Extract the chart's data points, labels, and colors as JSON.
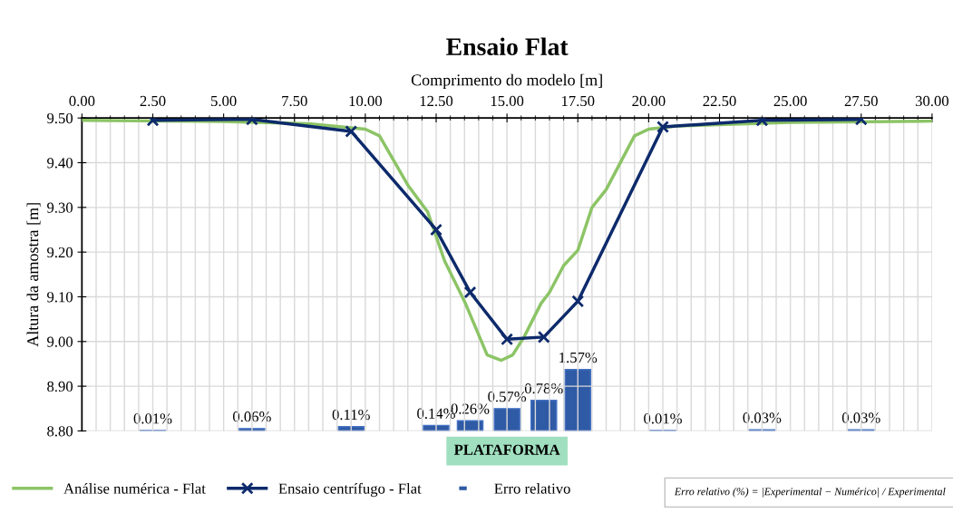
{
  "chart_data": {
    "type": "line",
    "title": "Ensaio Flat",
    "xlabel": "Comprimento do modelo [m]",
    "ylabel": "Altura da amostra [m]",
    "xlim": [
      0,
      30
    ],
    "xticks": [
      {
        "value": 0,
        "label": "0.00"
      },
      {
        "value": 2.5,
        "label": "2.50"
      },
      {
        "value": 5,
        "label": "5.00"
      },
      {
        "value": 7.5,
        "label": "7.50"
      },
      {
        "value": 10,
        "label": "10.00"
      },
      {
        "value": 12.5,
        "label": "12.50"
      },
      {
        "value": 15,
        "label": "15.00"
      },
      {
        "value": 17.5,
        "label": "17.50"
      },
      {
        "value": 20,
        "label": "20.00"
      },
      {
        "value": 22.5,
        "label": "22.50"
      },
      {
        "value": 25,
        "label": "25.00"
      },
      {
        "value": 27.5,
        "label": "27.50"
      },
      {
        "value": 30,
        "label": "30.00"
      }
    ],
    "ylim": [
      8.8,
      9.5
    ],
    "yticks": [
      {
        "value": 8.8,
        "label": "8.80"
      },
      {
        "value": 8.9,
        "label": "8.90"
      },
      {
        "value": 9.0,
        "label": "9.00"
      },
      {
        "value": 9.1,
        "label": "9.10"
      },
      {
        "value": 9.2,
        "label": "9.20"
      },
      {
        "value": 9.3,
        "label": "9.30"
      },
      {
        "value": 9.4,
        "label": "9.40"
      },
      {
        "value": 9.5,
        "label": "9.50"
      }
    ],
    "y2lim": [
      0,
      8
    ],
    "tick_labels": "xy",
    "grid": true,
    "legend": "bottom",
    "series": [
      {
        "name": "Análise numérica - Flat",
        "color": "#8cc466",
        "marker": "none",
        "x": [
          0,
          5,
          8,
          9.5,
          10,
          10.5,
          11.5,
          12.2,
          12.8,
          13.5,
          14.3,
          14.8,
          15.2,
          15.6,
          16.2,
          16.5,
          17,
          17.5,
          18,
          18.5,
          19.5,
          20,
          21,
          25,
          30
        ],
        "values": [
          9.495,
          9.492,
          9.487,
          9.478,
          9.475,
          9.46,
          9.35,
          9.29,
          9.18,
          9.09,
          8.97,
          8.958,
          8.97,
          9.01,
          9.085,
          9.11,
          9.17,
          9.204,
          9.3,
          9.34,
          9.46,
          9.475,
          9.482,
          9.49,
          9.493
        ]
      },
      {
        "name": "Ensaio centrífugo - Flat",
        "color": "#0d2a6b",
        "marker": "cross",
        "x": [
          2.5,
          6.0,
          9.5,
          12.5,
          13.7,
          15.0,
          16.3,
          17.5,
          20.5,
          24.0,
          27.5
        ],
        "values": [
          9.495,
          9.497,
          9.47,
          9.25,
          9.11,
          9.005,
          9.01,
          9.09,
          9.48,
          9.495,
          9.497
        ]
      },
      {
        "name": "Erro relativo",
        "type": "bar",
        "axis": "y2",
        "color": "#2f5aa5",
        "x": [
          2.5,
          6.0,
          9.5,
          12.5,
          13.7,
          15.0,
          16.3,
          17.5,
          20.5,
          24.0,
          27.5
        ],
        "values": [
          0.01,
          0.06,
          0.11,
          0.14,
          0.26,
          0.57,
          0.78,
          1.57,
          0.01,
          0.03,
          0.03
        ],
        "value_labels": [
          "0.01%",
          "0.06%",
          "0.11%",
          "0.14%",
          "0.26%",
          "0.57%",
          "0.78%",
          "1.57%",
          "0.01%",
          "0.03%",
          "0.03%"
        ]
      }
    ],
    "annotations": [
      {
        "text": "PLATAFORMA",
        "x": 15,
        "y": 8.8
      },
      "Erro relativo (%) = |Experimental − Numérico| / Experimental"
    ]
  }
}
